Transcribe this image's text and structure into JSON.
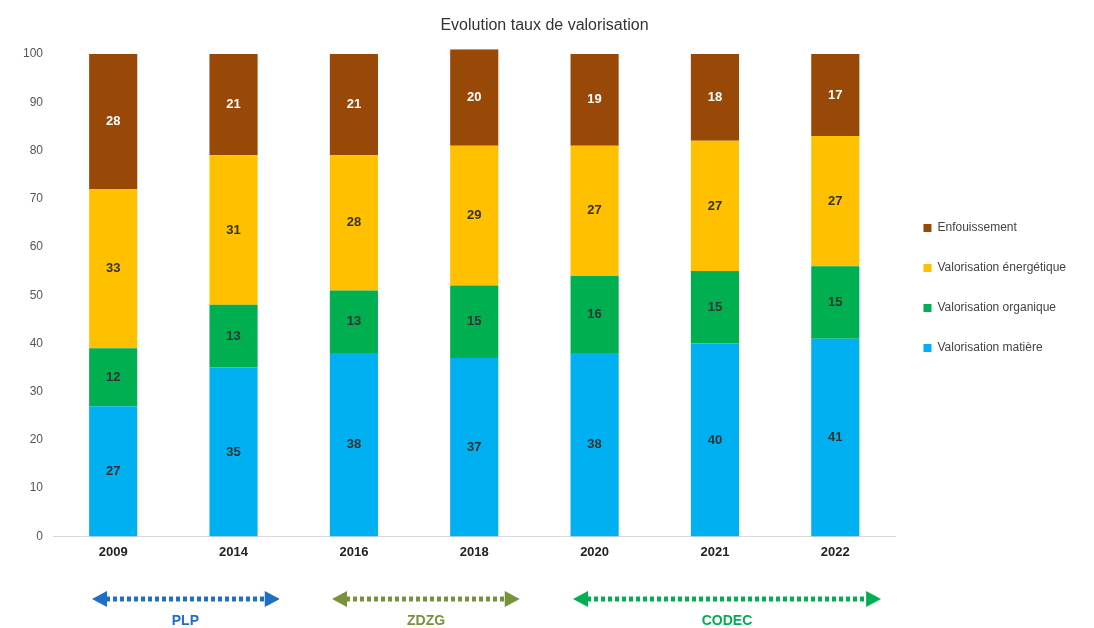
{
  "chart_data": {
    "type": "bar",
    "title": "Evolution taux de valorisation",
    "stacked": true,
    "categories": [
      "2009",
      "2014",
      "2016",
      "2018",
      "2020",
      "2021",
      "2022"
    ],
    "series": [
      {
        "name": "Valorisation matière",
        "color": "#00b0f0",
        "values": [
          27,
          35,
          38,
          37,
          38,
          40,
          41
        ]
      },
      {
        "name": "Valorisation organique",
        "color": "#00b050",
        "values": [
          12,
          13,
          13,
          15,
          16,
          15,
          15
        ]
      },
      {
        "name": "Valorisation énergétique",
        "color": "#ffc000",
        "values": [
          33,
          31,
          28,
          29,
          27,
          27,
          27
        ]
      },
      {
        "name": "Enfouissement",
        "color": "#984807",
        "values": [
          28,
          21,
          21,
          20,
          19,
          18,
          17
        ]
      }
    ],
    "ylim": [
      0,
      101
    ],
    "yticks": [
      0,
      10,
      20,
      30,
      40,
      50,
      60,
      70,
      80,
      90,
      100
    ],
    "grid": false,
    "legend": "right",
    "data_labels": true,
    "annotations": [
      "PLP",
      "ZDZG",
      "CODEC"
    ]
  }
}
